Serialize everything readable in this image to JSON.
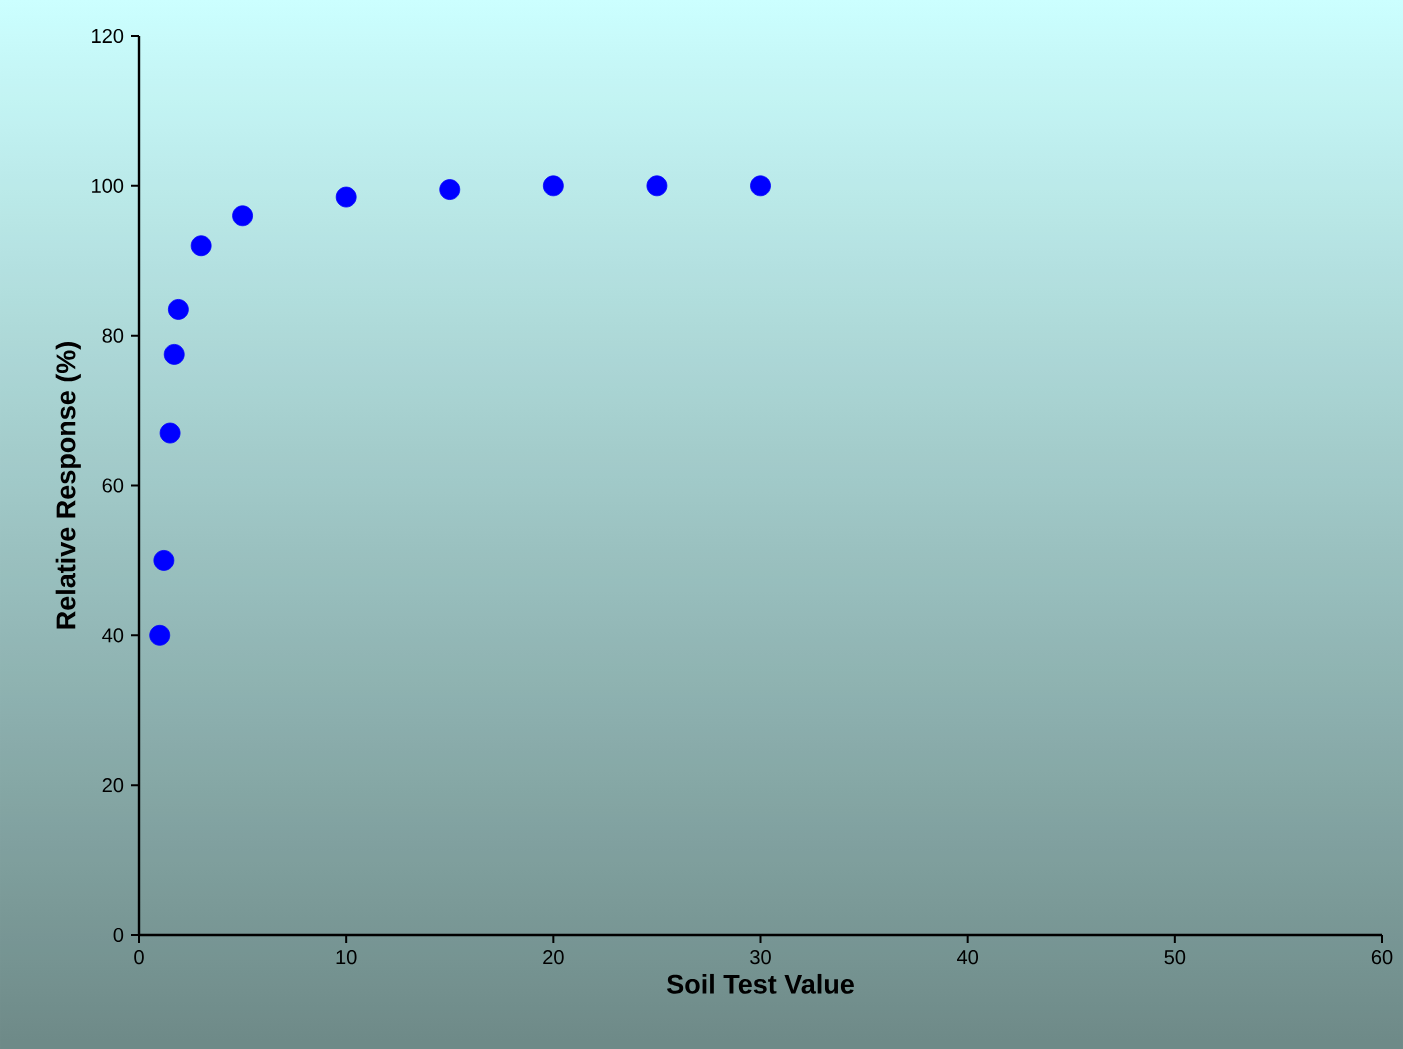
{
  "chart_data": {
    "type": "scatter",
    "xlabel": "Soil Test Value",
    "ylabel": "Relative Response (%)",
    "x": [
      1,
      1.2,
      1.5,
      1.7,
      1.9,
      3,
      5,
      10,
      15,
      20,
      25,
      30
    ],
    "values": [
      40,
      50,
      67,
      77.5,
      83.5,
      92,
      96,
      98.5,
      99.5,
      100,
      100,
      100
    ],
    "color": "#0000ff",
    "marker": "circle",
    "xlim": [
      0,
      60
    ],
    "xticks": [
      0,
      10,
      20,
      30,
      40,
      50,
      60
    ],
    "ylim": [
      0,
      120
    ],
    "yticks": [
      0,
      20,
      40,
      60,
      80,
      100,
      120
    ],
    "grid": false
  }
}
